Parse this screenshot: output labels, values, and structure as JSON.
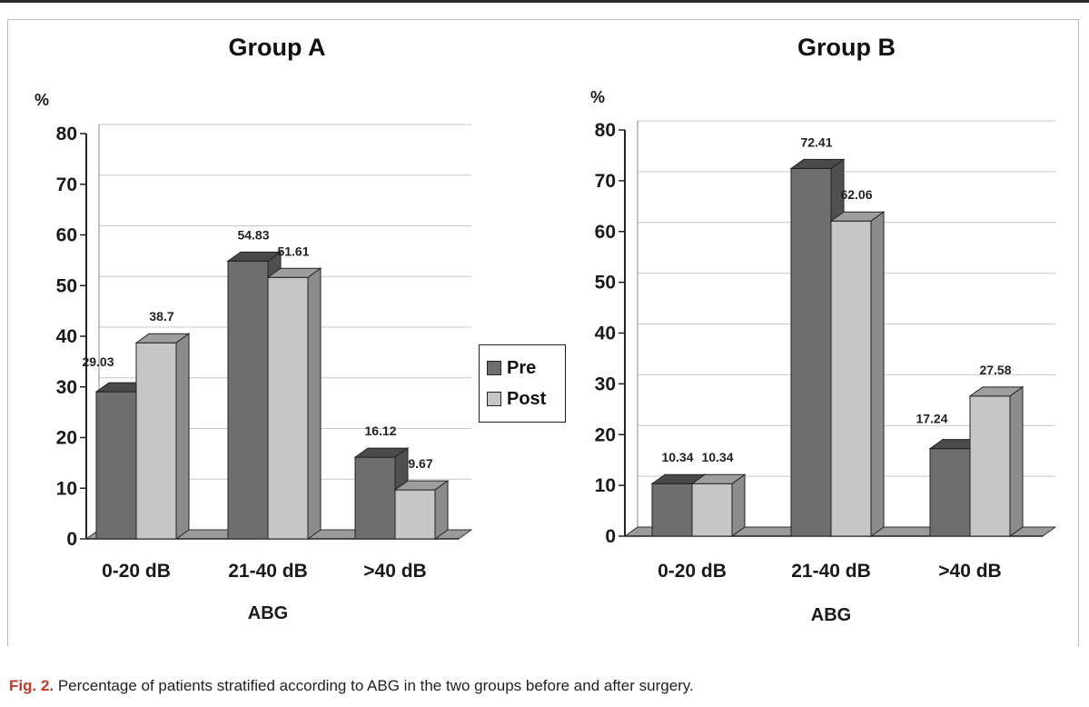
{
  "chart_data": [
    {
      "type": "bar",
      "title": "Group A",
      "ylabel": "%",
      "xlabel": "ABG",
      "categories": [
        "0-20 dB",
        "21-40 dB",
        ">40 dB"
      ],
      "series": [
        {
          "name": "Pre",
          "values": [
            29.03,
            54.83,
            16.12
          ],
          "labels": [
            "29.03",
            "54.83",
            "16.12"
          ]
        },
        {
          "name": "Post",
          "values": [
            38.7,
            51.61,
            9.67
          ],
          "labels": [
            "38.7",
            "51.61",
            "9.67"
          ]
        }
      ],
      "ylim": [
        0,
        80
      ],
      "yticks": [
        "0",
        "10",
        "20",
        "30",
        "40",
        "50",
        "60",
        "70",
        "80"
      ],
      "grid": true,
      "style": "3d"
    },
    {
      "type": "bar",
      "title": "Group B",
      "ylabel": "%",
      "xlabel": "ABG",
      "categories": [
        "0-20 dB",
        "21-40 dB",
        ">40 dB"
      ],
      "series": [
        {
          "name": "Pre",
          "values": [
            10.34,
            72.41,
            17.24
          ],
          "labels": [
            "10.34",
            "72.41",
            "17.24"
          ]
        },
        {
          "name": "Post",
          "values": [
            10.34,
            62.06,
            27.58
          ],
          "labels": [
            "10.34",
            "62.06",
            "27.58"
          ]
        }
      ],
      "ylim": [
        0,
        80
      ],
      "yticks": [
        "0",
        "10",
        "20",
        "30",
        "40",
        "50",
        "60",
        "70",
        "80"
      ],
      "grid": true,
      "style": "3d"
    }
  ],
  "legend": {
    "placement": "center",
    "items": [
      {
        "label": "Pre",
        "color": "#6e6e6e"
      },
      {
        "label": "Post",
        "color": "#c6c6c6"
      }
    ]
  },
  "colors": {
    "pre": "#6e6e6e",
    "pre_top": "#4a4a4a",
    "pre_side": "#505050",
    "post": "#c6c6c6",
    "post_top": "#9e9e9e",
    "post_side": "#8c8c8c",
    "grid": "#c8c8c8",
    "floor": "#8a8a8a"
  },
  "caption": {
    "figure": "Fig. 2.",
    "text": " Percentage of patients stratified according to ABG in the two groups before and after surgery."
  }
}
